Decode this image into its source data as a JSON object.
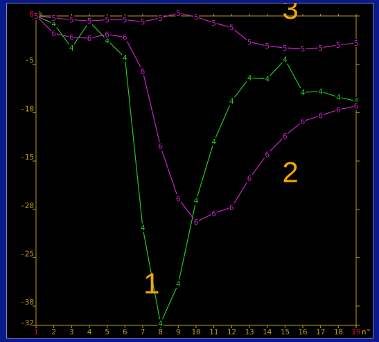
{
  "chart_data": {
    "type": "line",
    "x": [
      1,
      2,
      3,
      4,
      5,
      6,
      7,
      8,
      9,
      10,
      11,
      12,
      13,
      14,
      15,
      16,
      17,
      18,
      19
    ],
    "ylim": [
      -32,
      0
    ],
    "y_ticks": [
      0,
      -5,
      -10,
      -15,
      -20,
      -25,
      -30,
      -32
    ],
    "x_ticks": [
      1,
      2,
      3,
      4,
      5,
      6,
      7,
      8,
      9,
      10,
      11,
      12,
      13,
      14,
      15,
      16,
      17,
      18,
      19
    ],
    "y_unit": "%",
    "x_unit": "n°",
    "series": [
      {
        "marker": "4",
        "color": "#1fcc1f",
        "values": [
          0,
          -0.8,
          -3.3,
          -0.6,
          -2.5,
          -4.3,
          -21.9,
          -31.8,
          -27.7,
          -19.1,
          -13,
          -8.8,
          -6.4,
          -6.5,
          -4.5,
          -7.9,
          -7.8,
          -8.4,
          -8.8
        ]
      },
      {
        "marker": "6",
        "color": "#cc22cc",
        "values": [
          0,
          -1.8,
          -2.2,
          -2.3,
          -1.9,
          -2.2,
          -5.7,
          -13.5,
          -18.9,
          -21.3,
          -20.4,
          -19.8,
          -16.8,
          -14.3,
          -12.4,
          -10.9,
          -10.3,
          -9.7,
          -9.3
        ]
      },
      {
        "marker": "5",
        "color": "#cc22cc",
        "values": [
          0,
          -0.2,
          -0.4,
          -0.5,
          -0.4,
          -0.4,
          -0.6,
          -0.2,
          0.3,
          -0.1,
          -0.7,
          -1.2,
          -2.7,
          -3.1,
          -3.3,
          -3.4,
          -3.3,
          -3.0,
          -2.8
        ]
      }
    ],
    "annotations": [
      {
        "text": "1",
        "x": 7.5,
        "y": -28.7
      },
      {
        "text": "2",
        "x": 15.3,
        "y": -17.2
      },
      {
        "text": "3",
        "x": 15.3,
        "y": -0.3
      }
    ],
    "colors": {
      "axis": "#b8a010",
      "label": "#f5a800",
      "first_tick": "#e01010",
      "grid": "none"
    }
  }
}
